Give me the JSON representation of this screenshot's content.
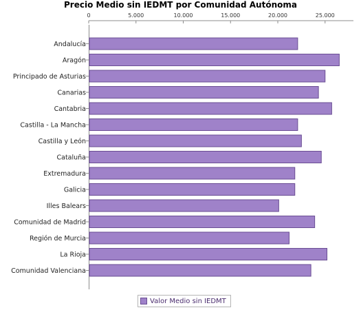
{
  "chart_data": {
    "type": "bar",
    "orientation": "horizontal",
    "title": "Precio Medio sin IEDMT por Comunidad Autónoma",
    "xlabel": "",
    "ylabel": "",
    "xlim": [
      0,
      28000
    ],
    "x_ticks": [
      0,
      5000,
      10000,
      15000,
      20000,
      25000
    ],
    "x_tick_labels": [
      "0",
      "5.000",
      "10.000",
      "15.000",
      "20.000",
      "25.000"
    ],
    "x_axis_position": "top",
    "grid": false,
    "legend_position": "bottom",
    "categories": [
      "Andalucía",
      "Aragón",
      "Principado de Asturias",
      "Canarias",
      "Cantabria",
      "Castilla - La Mancha",
      "Castilla y León",
      "Cataluña",
      "Extremadura",
      "Galicia",
      "Illes Balears",
      "Comunidad de Madrid",
      "Región de Murcia",
      "La Rioja",
      "Comunidad Valenciana"
    ],
    "series": [
      {
        "name": "Valor Medio sin IEDMT",
        "color": "#9f82c9",
        "border_color": "#6a4d93",
        "values": [
          22100,
          26500,
          25000,
          24300,
          25700,
          22100,
          22500,
          24600,
          21800,
          21800,
          20100,
          23900,
          21200,
          25200,
          23500
        ]
      }
    ]
  }
}
